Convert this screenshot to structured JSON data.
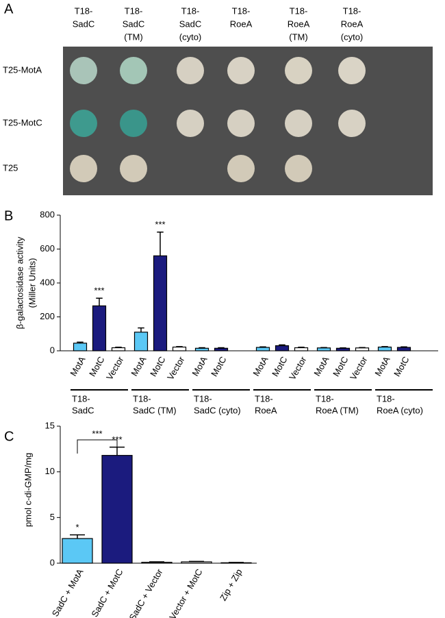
{
  "panel_a": {
    "label": "A",
    "columns": [
      [
        "T18-",
        "SadC"
      ],
      [
        "T18-",
        "SadC",
        "(TM)"
      ],
      [
        "T18-",
        "SadC",
        "(cyto)"
      ],
      [
        "T18-",
        "RoeA"
      ],
      [
        "T18-",
        "RoeA",
        "(TM)"
      ],
      [
        "T18-",
        "RoeA",
        "(cyto)"
      ]
    ],
    "rows": [
      "T25-MotA",
      "T25-MotC",
      "T25"
    ]
  },
  "chart_data": [
    {
      "type": "grouped-bar",
      "panel_label": "B",
      "ylabel": [
        "β-galactosidase activity",
        "(Miller Units)"
      ],
      "ylim": [
        0,
        800
      ],
      "yticks": [
        0,
        200,
        400,
        600,
        800
      ],
      "groups": [
        {
          "label": [
            "T18-",
            "SadC"
          ],
          "categories": [
            "MotA",
            "MotC",
            "Vector"
          ],
          "colors": [
            "#5bc8f5",
            "#1b1b7e",
            "#ffffff"
          ],
          "values": [
            45,
            265,
            18
          ],
          "errors": [
            6,
            45,
            3
          ],
          "significance": [
            null,
            "***",
            null
          ]
        },
        {
          "label": [
            "T18-",
            "SadC (TM)"
          ],
          "categories": [
            "MotA",
            "MotC",
            "Vector"
          ],
          "colors": [
            "#5bc8f5",
            "#1b1b7e",
            "#ffffff"
          ],
          "values": [
            110,
            560,
            22
          ],
          "errors": [
            25,
            140,
            3
          ],
          "significance": [
            null,
            "***",
            null
          ]
        },
        {
          "label": [
            "T18-",
            "SadC (cyto)"
          ],
          "categories": [
            "MotA",
            "MotC"
          ],
          "colors": [
            "#5bc8f5",
            "#1b1b7e"
          ],
          "values": [
            15,
            15
          ],
          "errors": [
            3,
            3
          ],
          "significance": [
            null,
            null
          ]
        },
        {
          "label": [
            "T18-",
            "RoeA"
          ],
          "categories": [
            "MotA",
            "MotC",
            "Vector"
          ],
          "colors": [
            "#5bc8f5",
            "#1b1b7e",
            "#ffffff"
          ],
          "values": [
            20,
            30,
            18
          ],
          "errors": [
            3,
            5,
            3
          ],
          "significance": [
            null,
            null,
            null
          ]
        },
        {
          "label": [
            "T18-",
            "RoeA (TM)"
          ],
          "categories": [
            "MotA",
            "MotC",
            "Vector"
          ],
          "colors": [
            "#5bc8f5",
            "#1b1b7e",
            "#ffffff"
          ],
          "values": [
            17,
            15,
            17
          ],
          "errors": [
            2,
            2,
            2
          ],
          "significance": [
            null,
            null,
            null
          ]
        },
        {
          "label": [
            "T18-",
            "RoeA (cyto)"
          ],
          "categories": [
            "MotA",
            "MotC"
          ],
          "colors": [
            "#5bc8f5",
            "#1b1b7e"
          ],
          "values": [
            22,
            20
          ],
          "errors": [
            3,
            3
          ],
          "significance": [
            null,
            null
          ]
        }
      ]
    },
    {
      "type": "bar",
      "panel_label": "C",
      "ylabel": "pmol c-di-GMP/mg",
      "ylim": [
        0,
        15
      ],
      "yticks": [
        0,
        5,
        10,
        15
      ],
      "categories": [
        "SadC + MotA",
        "SadC + MotC",
        "SadC + Vector",
        "Vector + MotC",
        "Zip + Zip"
      ],
      "colors": [
        "#5bc8f5",
        "#1b1b7e",
        "#ffffff",
        "#ffffff",
        "#ffffff"
      ],
      "values": [
        2.7,
        11.8,
        0.1,
        0.15,
        0.05
      ],
      "errors": [
        0.4,
        0.9,
        0.05,
        0.05,
        0.03
      ],
      "significance": [
        "*",
        "***",
        null,
        null,
        null
      ],
      "comparisons": [
        {
          "between": [
            0,
            1
          ],
          "label": "***"
        }
      ]
    }
  ]
}
